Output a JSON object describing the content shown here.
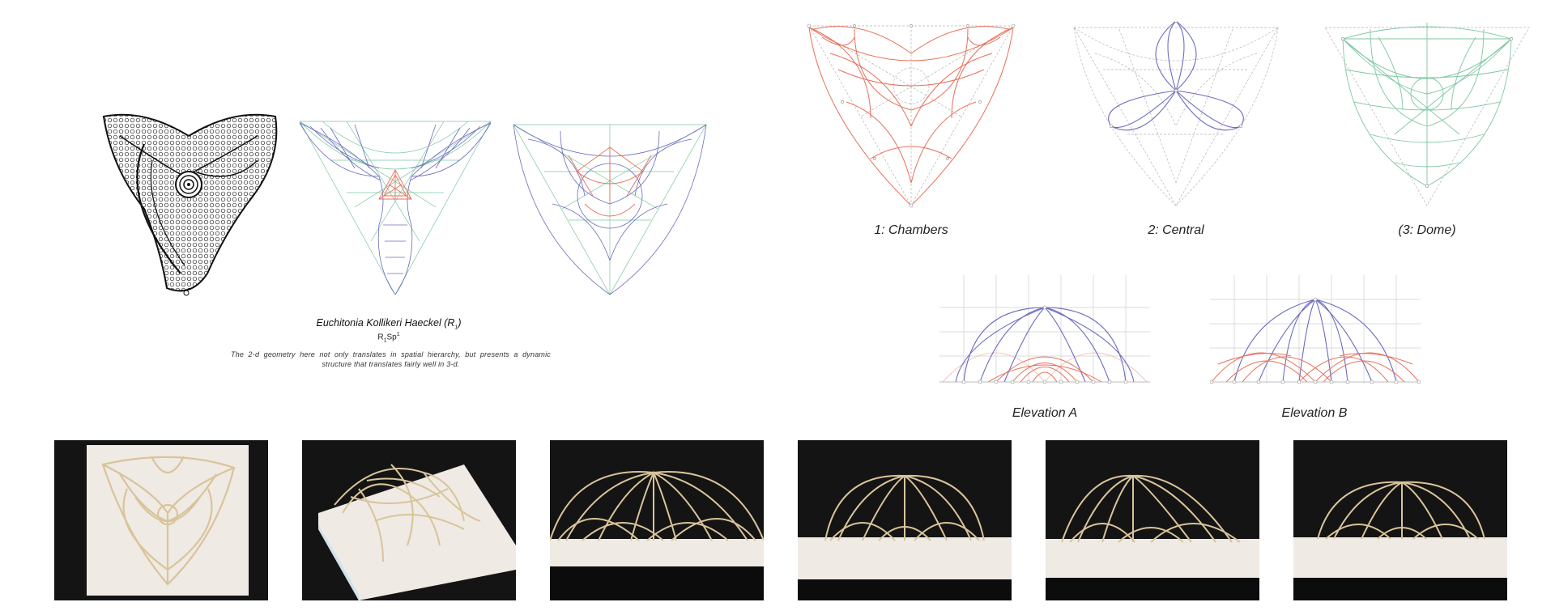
{
  "specimen": {
    "name": "Euchitonia Kollikeri Haeckel",
    "name_paren_open": "(R",
    "name_sub": "1",
    "name_paren_close": ")",
    "code_a": "R",
    "code_sub": "1",
    "code_b": "Sp",
    "code_sup": "1",
    "description": "The 2-d geometry here not only translates in spatial hierarchy, but presents a dynamic structure that translates fairly well in 3-d."
  },
  "diagrams": [
    {
      "caption": "1: Chambers"
    },
    {
      "caption": "2: Central"
    },
    {
      "caption": "(3: Dome)"
    }
  ],
  "elevations": [
    {
      "caption": "Elevation A"
    },
    {
      "caption": "Elevation B"
    }
  ],
  "colors": {
    "red": "#e8705a",
    "blue": "#6b6bbf",
    "green": "#7dc7a0",
    "grey": "#b5b5b5",
    "photo_bg": "#141414",
    "foam": "#efeae4",
    "wood": "#d9c49a"
  },
  "photos": [
    {
      "view": "plan-top-view"
    },
    {
      "view": "perspective-view"
    },
    {
      "view": "front-view"
    },
    {
      "view": "side-view-1"
    },
    {
      "view": "side-view-2"
    },
    {
      "view": "side-view-3"
    }
  ]
}
